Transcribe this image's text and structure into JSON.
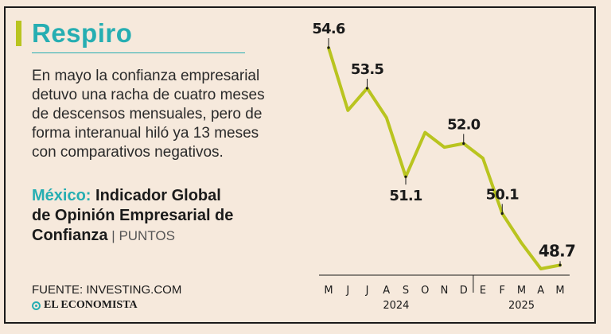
{
  "header": {
    "title": "Respiro",
    "description_lines": [
      "En mayo la confianza empresarial",
      "detuvo una racha de cuatro meses",
      "de descensos mensuales, pero de",
      "forma interanual hiló ya 13 meses",
      "con comparativos negativos."
    ]
  },
  "indicator": {
    "country": "México:",
    "name_line1": " Indicador Global",
    "name_line2": "de Opinión Empresarial de",
    "name_line3": "Confianza",
    "separator": " | ",
    "units": "PUNTOS"
  },
  "footer": {
    "source": "FUENTE: INVESTING.COM",
    "publisher": "EL ECONOMISTA"
  },
  "colors": {
    "accent": "#26aeb2",
    "line": "#b9c41f",
    "background": "#f6e9dc"
  },
  "chart_data": {
    "type": "line",
    "title": "México: Indicador Global de Opinión Empresarial de Confianza",
    "ylabel": "PUNTOS",
    "xlabel": "",
    "ylim": [
      48.0,
      55.5
    ],
    "categories": [
      "M",
      "J",
      "J",
      "A",
      "S",
      "O",
      "N",
      "D",
      "E",
      "F",
      "M",
      "A",
      "M"
    ],
    "years": [
      {
        "label": "2024",
        "from": 0,
        "to": 7
      },
      {
        "label": "2025",
        "from": 8,
        "to": 12
      }
    ],
    "series": [
      {
        "name": "Confianza empresarial",
        "values": [
          54.6,
          52.9,
          53.5,
          52.7,
          51.1,
          52.3,
          51.9,
          52.0,
          51.6,
          50.1,
          49.3,
          48.6,
          48.7
        ]
      }
    ],
    "annotations": [
      {
        "index": 0,
        "label": "54.6",
        "position": "above"
      },
      {
        "index": 2,
        "label": "53.5",
        "position": "above"
      },
      {
        "index": 4,
        "label": "51.1",
        "position": "below"
      },
      {
        "index": 7,
        "label": "52.0",
        "position": "above"
      },
      {
        "index": 9,
        "label": "50.1",
        "position": "above"
      },
      {
        "index": 12,
        "label": "48.7",
        "position": "above",
        "highlight": true
      }
    ]
  }
}
